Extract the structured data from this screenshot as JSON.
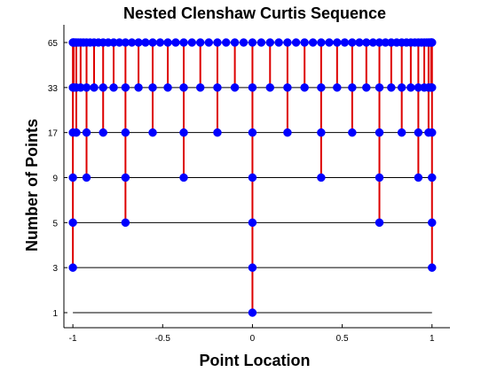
{
  "chart_data": {
    "type": "scatter",
    "title": "Nested Clenshaw Curtis Sequence",
    "xlabel": "Point Location",
    "ylabel": "Number of Points",
    "xlim": [
      -1.05,
      1.1
    ],
    "x_ticks": [
      -1,
      -0.5,
      0,
      0.5,
      1
    ],
    "x_tick_labels": [
      "-1",
      "-0.5",
      "0",
      "0.5",
      "1"
    ],
    "levels": [
      1,
      3,
      5,
      9,
      17,
      33,
      65
    ],
    "level_tick_labels": [
      "1",
      "3",
      "5",
      "9",
      "17",
      "33",
      "65"
    ],
    "line_range": [
      -1,
      1
    ],
    "grid": false,
    "colors": {
      "points": "#0000ff",
      "nest_lines": "#dd0000",
      "level_lines": "#000000",
      "axes": "#000000"
    }
  }
}
